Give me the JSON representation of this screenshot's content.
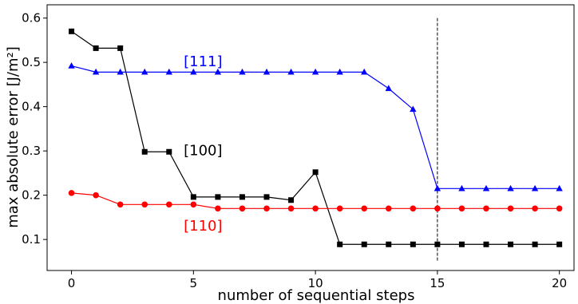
{
  "chart_data": {
    "type": "line",
    "xlabel": "number of sequential steps",
    "ylabel": "max absolute error [J/m²]",
    "xlim": [
      -1,
      20.6
    ],
    "ylim": [
      0.03,
      0.63
    ],
    "xticks": [
      0,
      5,
      10,
      15,
      20
    ],
    "yticks": [
      0.1,
      0.2,
      0.3,
      0.4,
      0.5,
      0.6
    ],
    "ytick_labels": [
      "0.1",
      "0.2",
      "0.3",
      "0.4",
      "0.5",
      "0.6"
    ],
    "grid": false,
    "legend": "none (series labelled inline)",
    "vline": {
      "x": 15,
      "ymin": 0.05,
      "ymax": 0.6,
      "style": "dashed",
      "color": "#000000"
    },
    "series": [
      {
        "name": "[100]",
        "color": "#000000",
        "marker": "square",
        "x": [
          0,
          1,
          2,
          3,
          4,
          5,
          6,
          7,
          8,
          9,
          10,
          11,
          12,
          13,
          14,
          15,
          16,
          17,
          18,
          19,
          20
        ],
        "values": [
          0.57,
          0.532,
          0.532,
          0.298,
          0.298,
          0.196,
          0.196,
          0.196,
          0.196,
          0.189,
          0.252,
          0.089,
          0.089,
          0.089,
          0.089,
          0.089,
          0.089,
          0.089,
          0.089,
          0.089,
          0.089
        ],
        "label_pos": {
          "x": 4.6,
          "y": 0.301
        }
      },
      {
        "name": "[110]",
        "color": "#ff0000",
        "marker": "circle",
        "x": [
          0,
          1,
          2,
          3,
          4,
          5,
          6,
          7,
          8,
          9,
          10,
          11,
          12,
          13,
          14,
          15,
          16,
          17,
          18,
          19,
          20
        ],
        "values": [
          0.205,
          0.2,
          0.179,
          0.179,
          0.179,
          0.179,
          0.17,
          0.17,
          0.17,
          0.17,
          0.17,
          0.17,
          0.17,
          0.17,
          0.17,
          0.17,
          0.17,
          0.17,
          0.17,
          0.17,
          0.17
        ],
        "label_pos": {
          "x": 4.6,
          "y": 0.131
        }
      },
      {
        "name": "[111]",
        "color": "#0000ff",
        "marker": "triangle",
        "x": [
          0,
          1,
          2,
          3,
          4,
          5,
          6,
          7,
          8,
          9,
          10,
          11,
          12,
          13,
          14,
          15,
          16,
          17,
          18,
          19,
          20
        ],
        "values": [
          0.492,
          0.478,
          0.478,
          0.478,
          0.478,
          0.478,
          0.478,
          0.478,
          0.478,
          0.478,
          0.478,
          0.478,
          0.478,
          0.441,
          0.394,
          0.215,
          0.215,
          0.215,
          0.215,
          0.215,
          0.215
        ],
        "label_pos": {
          "x": 4.6,
          "y": 0.502
        }
      }
    ]
  }
}
